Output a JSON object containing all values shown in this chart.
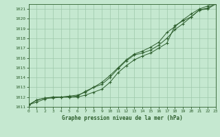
{
  "title": "Graphe pression niveau de la mer (hPa)",
  "background_color": "#c5e8d0",
  "grid_color": "#9dc8aa",
  "line_color": "#2d5e2d",
  "marker_color": "#2d5e2d",
  "xlim": [
    0,
    23
  ],
  "ylim": [
    1011,
    1021.5
  ],
  "yticks": [
    1011,
    1012,
    1013,
    1014,
    1015,
    1016,
    1017,
    1018,
    1019,
    1020,
    1021
  ],
  "xticks": [
    0,
    1,
    2,
    3,
    4,
    5,
    6,
    7,
    8,
    9,
    10,
    11,
    12,
    13,
    14,
    15,
    16,
    17,
    18,
    19,
    20,
    21,
    22,
    23
  ],
  "series1": [
    1011.2,
    1011.7,
    1011.9,
    1011.9,
    1012.0,
    1012.0,
    1012.0,
    1012.2,
    1012.5,
    1012.8,
    1013.5,
    1014.5,
    1015.2,
    1015.8,
    1016.2,
    1016.5,
    1017.0,
    1017.5,
    1019.3,
    1019.8,
    1020.2,
    1020.9,
    1021.0,
    1021.5
  ],
  "series2": [
    1011.2,
    1011.7,
    1011.9,
    1012.0,
    1012.0,
    1012.0,
    1012.1,
    1012.6,
    1013.0,
    1013.3,
    1014.0,
    1014.9,
    1015.7,
    1016.3,
    1016.5,
    1016.8,
    1017.3,
    1018.0,
    1018.9,
    1019.5,
    1020.2,
    1020.9,
    1021.1,
    1021.6
  ],
  "series3": [
    1011.2,
    1011.5,
    1011.8,
    1012.0,
    1012.0,
    1012.1,
    1012.2,
    1012.5,
    1013.0,
    1013.5,
    1014.2,
    1015.0,
    1015.8,
    1016.4,
    1016.7,
    1017.1,
    1017.6,
    1018.6,
    1019.2,
    1019.9,
    1020.5,
    1021.0,
    1021.3,
    1021.7
  ]
}
